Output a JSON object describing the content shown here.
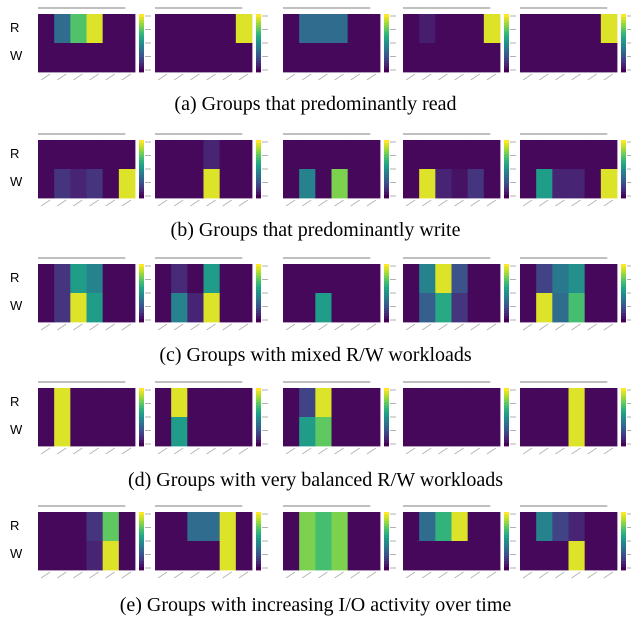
{
  "row_labels": [
    "R",
    "W"
  ],
  "colormap": "viridis",
  "colors": {
    "low": "#440154",
    "high": "#fde725"
  },
  "groups": [
    {
      "caption": "(a) Groups that predominantly read",
      "chart_data": [
        {
          "type": "heatmap",
          "title": "",
          "rows": [
            "R",
            "W"
          ],
          "values": [
            [
              0.02,
              0.35,
              0.72,
              0.95,
              0.02,
              0.02
            ],
            [
              0.02,
              0.02,
              0.02,
              0.02,
              0.02,
              0.02
            ]
          ]
        },
        {
          "type": "heatmap",
          "title": "",
          "rows": [
            "R",
            "W"
          ],
          "values": [
            [
              0.02,
              0.02,
              0.02,
              0.02,
              0.02,
              0.95
            ],
            [
              0.02,
              0.02,
              0.02,
              0.02,
              0.02,
              0.02
            ]
          ]
        },
        {
          "type": "heatmap",
          "title": "",
          "rows": [
            "R",
            "W"
          ],
          "values": [
            [
              0.02,
              0.35,
              0.35,
              0.35,
              0.02,
              0.02
            ],
            [
              0.02,
              0.02,
              0.02,
              0.02,
              0.02,
              0.02
            ]
          ]
        },
        {
          "type": "heatmap",
          "title": "",
          "rows": [
            "R",
            "W"
          ],
          "values": [
            [
              0.02,
              0.08,
              0.02,
              0.02,
              0.02,
              0.95
            ],
            [
              0.02,
              0.02,
              0.02,
              0.02,
              0.02,
              0.02
            ]
          ]
        },
        {
          "type": "heatmap",
          "title": "",
          "rows": [
            "R",
            "W"
          ],
          "values": [
            [
              0.02,
              0.02,
              0.02,
              0.02,
              0.02,
              0.95
            ],
            [
              0.02,
              0.02,
              0.02,
              0.02,
              0.02,
              0.02
            ]
          ]
        }
      ]
    },
    {
      "caption": "(b) Groups that predominantly write",
      "chart_data": [
        {
          "type": "heatmap",
          "title": "",
          "rows": [
            "R",
            "W"
          ],
          "values": [
            [
              0.02,
              0.02,
              0.02,
              0.02,
              0.02,
              0.02
            ],
            [
              0.02,
              0.15,
              0.1,
              0.15,
              0.02,
              0.95
            ]
          ]
        },
        {
          "type": "heatmap",
          "title": "",
          "rows": [
            "R",
            "W"
          ],
          "values": [
            [
              0.02,
              0.02,
              0.02,
              0.1,
              0.02,
              0.02
            ],
            [
              0.02,
              0.02,
              0.02,
              0.95,
              0.02,
              0.02
            ]
          ]
        },
        {
          "type": "heatmap",
          "title": "",
          "rows": [
            "R",
            "W"
          ],
          "values": [
            [
              0.02,
              0.02,
              0.02,
              0.02,
              0.02,
              0.02
            ],
            [
              0.02,
              0.45,
              0.02,
              0.8,
              0.02,
              0.02
            ]
          ]
        },
        {
          "type": "heatmap",
          "title": "",
          "rows": [
            "R",
            "W"
          ],
          "values": [
            [
              0.02,
              0.02,
              0.02,
              0.02,
              0.02,
              0.02
            ],
            [
              0.02,
              0.95,
              0.1,
              0.05,
              0.15,
              0.02
            ]
          ]
        },
        {
          "type": "heatmap",
          "title": "",
          "rows": [
            "R",
            "W"
          ],
          "values": [
            [
              0.02,
              0.02,
              0.02,
              0.02,
              0.02,
              0.02
            ],
            [
              0.02,
              0.55,
              0.1,
              0.1,
              0.02,
              0.95
            ]
          ]
        }
      ]
    },
    {
      "caption": "(c) Groups with mixed R/W workloads",
      "chart_data": [
        {
          "type": "heatmap",
          "title": "",
          "rows": [
            "R",
            "W"
          ],
          "values": [
            [
              0.02,
              0.15,
              0.55,
              0.45,
              0.02,
              0.02
            ],
            [
              0.02,
              0.15,
              0.95,
              0.55,
              0.02,
              0.02
            ]
          ]
        },
        {
          "type": "heatmap",
          "title": "",
          "rows": [
            "R",
            "W"
          ],
          "values": [
            [
              0.02,
              0.12,
              0.02,
              0.55,
              0.02,
              0.02
            ],
            [
              0.02,
              0.45,
              0.1,
              0.95,
              0.02,
              0.02
            ]
          ]
        },
        {
          "type": "heatmap",
          "title": "",
          "rows": [
            "R",
            "W"
          ],
          "values": [
            [
              0.02,
              0.02,
              0.02,
              0.02,
              0.02,
              0.02
            ],
            [
              0.02,
              0.02,
              0.55,
              0.02,
              0.02,
              0.02
            ]
          ]
        },
        {
          "type": "heatmap",
          "title": "",
          "rows": [
            "R",
            "W"
          ],
          "values": [
            [
              0.02,
              0.45,
              0.95,
              0.25,
              0.02,
              0.02
            ],
            [
              0.02,
              0.3,
              0.6,
              0.15,
              0.02,
              0.02
            ]
          ]
        },
        {
          "type": "heatmap",
          "title": "",
          "rows": [
            "R",
            "W"
          ],
          "values": [
            [
              0.02,
              0.2,
              0.4,
              0.5,
              0.02,
              0.02
            ],
            [
              0.02,
              0.95,
              0.35,
              0.7,
              0.02,
              0.02
            ]
          ]
        }
      ]
    },
    {
      "caption": "(d) Groups with very balanced R/W workloads",
      "chart_data": [
        {
          "type": "heatmap",
          "title": "",
          "rows": [
            "R",
            "W"
          ],
          "values": [
            [
              0.02,
              0.95,
              0.02,
              0.02,
              0.02,
              0.02
            ],
            [
              0.02,
              0.95,
              0.02,
              0.02,
              0.02,
              0.02
            ]
          ]
        },
        {
          "type": "heatmap",
          "title": "",
          "rows": [
            "R",
            "W"
          ],
          "values": [
            [
              0.02,
              0.95,
              0.02,
              0.02,
              0.02,
              0.02
            ],
            [
              0.02,
              0.55,
              0.02,
              0.02,
              0.02,
              0.02
            ]
          ]
        },
        {
          "type": "heatmap",
          "title": "",
          "rows": [
            "R",
            "W"
          ],
          "values": [
            [
              0.02,
              0.2,
              0.95,
              0.02,
              0.02,
              0.02
            ],
            [
              0.02,
              0.55,
              0.75,
              0.02,
              0.02,
              0.02
            ]
          ]
        },
        {
          "type": "heatmap",
          "title": "",
          "rows": [
            "R",
            "W"
          ],
          "values": [
            [
              0.02,
              0.02,
              0.02,
              0.02,
              0.02,
              0.02
            ],
            [
              0.02,
              0.02,
              0.02,
              0.02,
              0.02,
              0.02
            ]
          ]
        },
        {
          "type": "heatmap",
          "title": "",
          "rows": [
            "R",
            "W"
          ],
          "values": [
            [
              0.02,
              0.02,
              0.02,
              0.95,
              0.02,
              0.02
            ],
            [
              0.02,
              0.02,
              0.02,
              0.95,
              0.02,
              0.02
            ]
          ]
        }
      ]
    },
    {
      "caption": "(e) Groups with increasing I/O activity over time",
      "chart_data": [
        {
          "type": "heatmap",
          "title": "",
          "rows": [
            "R",
            "W"
          ],
          "values": [
            [
              0.02,
              0.02,
              0.02,
              0.15,
              0.75,
              0.02
            ],
            [
              0.02,
              0.02,
              0.02,
              0.1,
              0.95,
              0.02
            ]
          ]
        },
        {
          "type": "heatmap",
          "title": "",
          "rows": [
            "R",
            "W"
          ],
          "values": [
            [
              0.02,
              0.02,
              0.35,
              0.35,
              0.95,
              0.02
            ],
            [
              0.02,
              0.02,
              0.02,
              0.02,
              0.95,
              0.02
            ]
          ]
        },
        {
          "type": "heatmap",
          "title": "",
          "rows": [
            "R",
            "W"
          ],
          "values": [
            [
              0.02,
              0.8,
              0.7,
              0.8,
              0.02,
              0.02
            ],
            [
              0.02,
              0.8,
              0.7,
              0.8,
              0.02,
              0.02
            ]
          ]
        },
        {
          "type": "heatmap",
          "title": "",
          "rows": [
            "R",
            "W"
          ],
          "values": [
            [
              0.02,
              0.35,
              0.65,
              0.95,
              0.02,
              0.02
            ],
            [
              0.02,
              0.02,
              0.02,
              0.02,
              0.02,
              0.02
            ]
          ]
        },
        {
          "type": "heatmap",
          "title": "",
          "rows": [
            "R",
            "W"
          ],
          "values": [
            [
              0.02,
              0.45,
              0.2,
              0.1,
              0.02,
              0.02
            ],
            [
              0.02,
              0.02,
              0.02,
              0.95,
              0.02,
              0.02
            ]
          ]
        }
      ]
    }
  ]
}
